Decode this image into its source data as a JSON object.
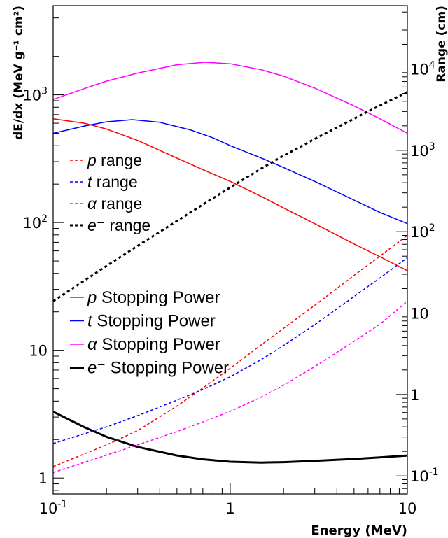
{
  "chart_data": {
    "type": "line",
    "xlabel": "Energy (MeV)",
    "ylabel_left": "dE/dx (MeV g⁻¹ cm²)",
    "ylabel_right": "Range (cm)",
    "x_scale": "log",
    "y_left_scale": "log",
    "y_right_scale": "log",
    "xlim": [
      0.1,
      10
    ],
    "ylim_left": [
      0.75,
      5000
    ],
    "ylim_right": [
      0.06,
      60000
    ],
    "x_ticks": [
      {
        "value": 0.1,
        "label": "10",
        "sup": "-1"
      },
      {
        "value": 1,
        "label": "1",
        "sup": ""
      },
      {
        "value": 10,
        "label": "10",
        "sup": ""
      }
    ],
    "y_left_ticks": [
      {
        "value": 1,
        "label": "1",
        "sup": ""
      },
      {
        "value": 10,
        "label": "10",
        "sup": ""
      },
      {
        "value": 100,
        "label": "10",
        "sup": "2"
      },
      {
        "value": 1000,
        "label": "10",
        "sup": "3"
      }
    ],
    "y_right_ticks": [
      {
        "value": 0.1,
        "label": "10",
        "sup": "-1"
      },
      {
        "value": 1,
        "label": "1",
        "sup": ""
      },
      {
        "value": 10,
        "label": "10",
        "sup": ""
      },
      {
        "value": 100,
        "label": "10",
        "sup": "2"
      },
      {
        "value": 1000,
        "label": "10",
        "sup": "3"
      },
      {
        "value": 10000,
        "label": "10",
        "sup": "4"
      }
    ],
    "grid": false,
    "legends": [
      {
        "position": "upper-left",
        "entries": [
          {
            "prefix": "p",
            "suffix": " range",
            "color": "#ff0000",
            "style": "dashed",
            "width": 1.5
          },
          {
            "prefix": "t",
            "suffix": " range",
            "color": "#0000ff",
            "style": "dashed",
            "width": 1.5
          },
          {
            "prefix": "α",
            "suffix": " range",
            "color": "#ff00ff",
            "style": "dashed",
            "width": 1.5
          },
          {
            "prefix": "e⁻",
            "suffix": " range",
            "color": "#000000",
            "style": "dashed",
            "width": 3
          }
        ]
      },
      {
        "position": "middle-left",
        "entries": [
          {
            "prefix": "p",
            "suffix": " Stopping Power",
            "color": "#ff0000",
            "style": "solid",
            "width": 1.5
          },
          {
            "prefix": "t",
            "suffix": " Stopping Power",
            "color": "#0000ff",
            "style": "solid",
            "width": 1.5
          },
          {
            "prefix": "α",
            "suffix": " Stopping Power",
            "color": "#ff00ff",
            "style": "solid",
            "width": 1.5
          },
          {
            "prefix": "e⁻",
            "suffix": " Stopping Power",
            "color": "#000000",
            "style": "solid",
            "width": 3
          }
        ]
      }
    ],
    "series": [
      {
        "name": "p Stopping Power",
        "axis": "left",
        "color": "#ff0000",
        "style": "solid",
        "width": 1.5,
        "x": [
          0.1,
          0.15,
          0.2,
          0.3,
          0.5,
          0.7,
          1,
          1.5,
          2,
          3,
          5,
          7,
          10
        ],
        "y": [
          650,
          600,
          540,
          440,
          320,
          260,
          210,
          160,
          130,
          98,
          68,
          54,
          42
        ]
      },
      {
        "name": "t Stopping Power",
        "axis": "left",
        "color": "#0000ff",
        "style": "solid",
        "width": 1.5,
        "x": [
          0.1,
          0.15,
          0.2,
          0.28,
          0.4,
          0.6,
          0.8,
          1,
          1.5,
          2,
          3,
          5,
          7,
          10
        ],
        "y": [
          500,
          570,
          615,
          640,
          610,
          530,
          460,
          400,
          320,
          270,
          210,
          150,
          120,
          98
        ]
      },
      {
        "name": "α Stopping Power",
        "axis": "left",
        "color": "#ff00ff",
        "style": "solid",
        "width": 1.5,
        "x": [
          0.1,
          0.15,
          0.2,
          0.3,
          0.5,
          0.72,
          1,
          1.5,
          2,
          3,
          5,
          7,
          10
        ],
        "y": [
          920,
          1120,
          1280,
          1480,
          1720,
          1800,
          1750,
          1570,
          1400,
          1130,
          820,
          650,
          500
        ]
      },
      {
        "name": "e⁻ Stopping Power",
        "axis": "left",
        "color": "#000000",
        "style": "solid",
        "width": 3,
        "x": [
          0.1,
          0.15,
          0.2,
          0.3,
          0.5,
          0.7,
          1,
          1.5,
          2,
          3,
          5,
          7,
          10
        ],
        "y": [
          3.3,
          2.5,
          2.1,
          1.75,
          1.5,
          1.4,
          1.34,
          1.32,
          1.33,
          1.36,
          1.41,
          1.45,
          1.5
        ]
      },
      {
        "name": "p range",
        "axis": "right",
        "color": "#ff0000",
        "style": "dashed",
        "width": 1.5,
        "x": [
          0.1,
          0.2,
          0.3,
          0.5,
          0.7,
          1,
          1.5,
          2,
          3,
          5,
          7,
          10
        ],
        "y": [
          0.13,
          0.24,
          0.36,
          0.72,
          1.2,
          2.1,
          4.1,
          6.5,
          12.5,
          29,
          50,
          90
        ]
      },
      {
        "name": "t range",
        "axis": "right",
        "color": "#0000ff",
        "style": "dashed",
        "width": 1.5,
        "x": [
          0.1,
          0.2,
          0.3,
          0.5,
          0.7,
          1,
          1.5,
          2,
          3,
          5,
          7,
          10
        ],
        "y": [
          0.25,
          0.4,
          0.55,
          0.85,
          1.15,
          1.65,
          2.7,
          4,
          7.2,
          16,
          27,
          48
        ]
      },
      {
        "name": "α range",
        "axis": "right",
        "color": "#ff00ff",
        "style": "dashed",
        "width": 1.5,
        "x": [
          0.1,
          0.2,
          0.3,
          0.5,
          0.7,
          1,
          1.5,
          2,
          3,
          5,
          7,
          10
        ],
        "y": [
          0.11,
          0.18,
          0.24,
          0.35,
          0.46,
          0.62,
          0.93,
          1.3,
          2.2,
          4.5,
          7.3,
          14
        ]
      },
      {
        "name": "e⁻ range",
        "axis": "right",
        "color": "#000000",
        "style": "dashed",
        "width": 3,
        "x": [
          0.1,
          0.2,
          0.3,
          0.5,
          0.7,
          1,
          1.5,
          2,
          3,
          5,
          7,
          10
        ],
        "y": [
          14,
          38,
          67,
          135,
          215,
          350,
          600,
          860,
          1380,
          2450,
          3550,
          5200
        ]
      }
    ]
  }
}
